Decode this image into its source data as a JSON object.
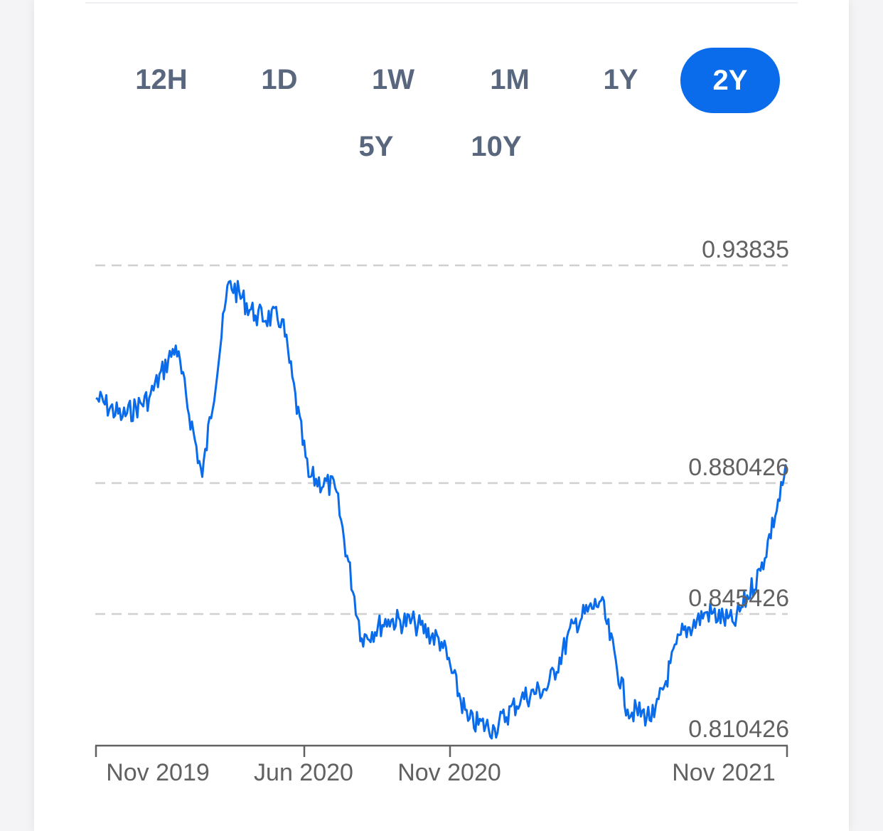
{
  "range_selector": {
    "buttons": [
      {
        "label": "12H",
        "active": false
      },
      {
        "label": "1D",
        "active": false
      },
      {
        "label": "1W",
        "active": false
      },
      {
        "label": "1M",
        "active": false
      },
      {
        "label": "1Y",
        "active": false
      },
      {
        "label": "2Y",
        "active": true
      },
      {
        "label": "5Y",
        "active": false
      },
      {
        "label": "10Y",
        "active": false
      }
    ]
  },
  "colors": {
    "accent": "#0a6cea",
    "line": "#0a6cea",
    "button_text": "#58667e",
    "grid": "#d0d0d0",
    "axis": "#616161"
  },
  "chart_data": {
    "type": "line",
    "title": "",
    "xlabel": "",
    "ylabel": "",
    "y_ticks": [
      "0.93835",
      "0.880426",
      "0.845426",
      "0.810426"
    ],
    "x_ticks": [
      "Nov 2019",
      "Jun 2020",
      "Nov 2020",
      "Nov 2021"
    ],
    "ylim": [
      0.806,
      0.9384
    ],
    "grid": "horizontal dashed",
    "series": [
      {
        "x": [
          "2019-10",
          "2019-11",
          "2019-12",
          "2020-01",
          "2020-02",
          "2020-03",
          "2020-04",
          "2020-05",
          "2020-06",
          "2020-07",
          "2020-08",
          "2020-09",
          "2020-10",
          "2020-11",
          "2020-12",
          "2021-01",
          "2021-02",
          "2021-03",
          "2021-04",
          "2021-05",
          "2021-06",
          "2021-07",
          "2021-08",
          "2021-09",
          "2021-10",
          "2021-11",
          "2021-12"
        ],
        "values": [
          0.903,
          0.898,
          0.903,
          0.917,
          0.882,
          0.934,
          0.925,
          0.924,
          0.882,
          0.879,
          0.839,
          0.844,
          0.843,
          0.838,
          0.817,
          0.815,
          0.823,
          0.826,
          0.843,
          0.849,
          0.82,
          0.818,
          0.84,
          0.846,
          0.843,
          0.857,
          0.884
        ]
      }
    ]
  }
}
